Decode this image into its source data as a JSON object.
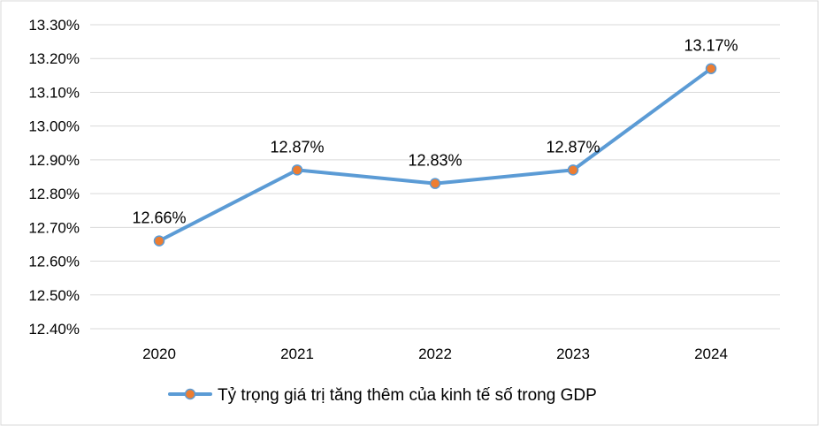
{
  "chart_data": {
    "type": "line",
    "categories": [
      "2020",
      "2021",
      "2022",
      "2023",
      "2024"
    ],
    "series": [
      {
        "name": "Tỷ trọng giá trị tăng thêm của kinh  tế số trong GDP",
        "values": [
          12.66,
          12.87,
          12.83,
          12.87,
          13.17
        ],
        "data_labels": [
          "12.66%",
          "12.87%",
          "12.83%",
          "12.87%",
          "13.17%"
        ],
        "line_color": "#5b9bd5",
        "marker_color": "#ed7d31"
      }
    ],
    "y_ticks": [
      "13.30%",
      "13.20%",
      "13.10%",
      "13.00%",
      "12.90%",
      "12.80%",
      "12.70%",
      "12.60%",
      "12.50%",
      "12.40%"
    ],
    "ylim": [
      12.4,
      13.3
    ],
    "grid": true,
    "legend_position": "bottom"
  },
  "colors": {
    "gridline": "#d9d9d9",
    "frame": "#d9d9d9"
  }
}
